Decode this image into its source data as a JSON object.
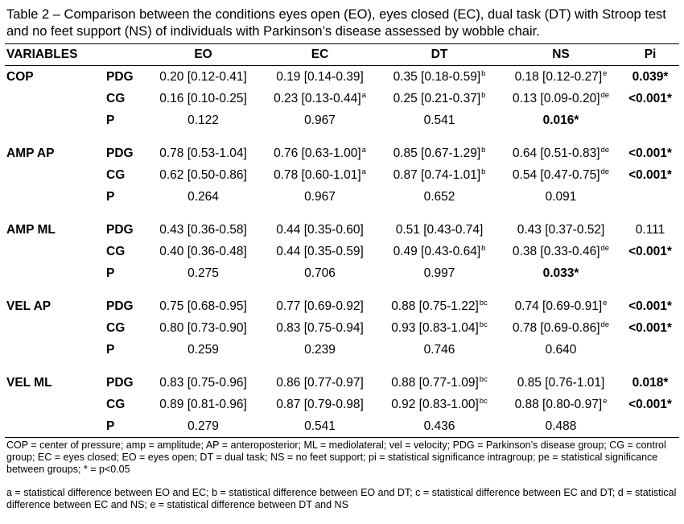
{
  "caption": "Table 2 – Comparison between the conditions eyes open (EO), eyes closed (EC), dual task (DT) with Stroop test and no feet support (NS) of individuals with Parkinson’s disease assessed by wobble chair.",
  "headers": {
    "variables": "VARIABLES",
    "eo": "EO",
    "ec": "EC",
    "dt": "DT",
    "ns": "NS",
    "pi": "Pi"
  },
  "sections": [
    {
      "name": "COP",
      "rows": [
        {
          "group": "PDG",
          "eo": "0.20 [0.12-0.41]",
          "eo_sup": "",
          "ec": "0.19 [0.14-0.39]",
          "ec_sup": "",
          "dt": "0.35 [0.18-0.59]",
          "dt_sup": "b",
          "ns": "0.18 [0.12-0.27]",
          "ns_sup": "e",
          "pi": "0.039*",
          "pi_bold": true,
          "ns_bold": false
        },
        {
          "group": "CG",
          "eo": "0.16 [0.10-0.25]",
          "eo_sup": "",
          "ec": "0.23 [0.13-0.44]",
          "ec_sup": "a",
          "dt": "0.25 [0.21-0.37]",
          "dt_sup": "b",
          "ns": "0.13 [0.09-0.20]",
          "ns_sup": "de",
          "pi": "<0.001*",
          "pi_bold": true,
          "ns_bold": false
        },
        {
          "group": "P",
          "eo": "0.122",
          "eo_sup": "",
          "ec": "0.967",
          "ec_sup": "",
          "dt": "0.541",
          "dt_sup": "",
          "ns": "0.016*",
          "ns_sup": "",
          "pi": "",
          "pi_bold": false,
          "ns_bold": true
        }
      ]
    },
    {
      "name": "AMP AP",
      "rows": [
        {
          "group": "PDG",
          "eo": "0.78 [0.53-1.04]",
          "eo_sup": "",
          "ec": "0.76 [0.63-1.00]",
          "ec_sup": "a",
          "dt": "0.85 [0.67-1.29]",
          "dt_sup": "b",
          "ns": "0.64 [0.51-0.83]",
          "ns_sup": "de",
          "pi": "<0.001*",
          "pi_bold": true,
          "ns_bold": false
        },
        {
          "group": "CG",
          "eo": "0.62 [0.50-0.86]",
          "eo_sup": "",
          "ec": "0.78 [0.60-1.01]",
          "ec_sup": "a",
          "dt": "0.87 [0.74-1.01]",
          "dt_sup": "b",
          "ns": "0.54 [0.47-0.75]",
          "ns_sup": "de",
          "pi": "<0.001*",
          "pi_bold": true,
          "ns_bold": false
        },
        {
          "group": "P",
          "eo": "0.264",
          "eo_sup": "",
          "ec": "0.967",
          "ec_sup": "",
          "dt": "0.652",
          "dt_sup": "",
          "ns": "0.091",
          "ns_sup": "",
          "pi": "",
          "pi_bold": false,
          "ns_bold": false
        }
      ]
    },
    {
      "name": "AMP ML",
      "rows": [
        {
          "group": "PDG",
          "eo": "0.43 [0.36-0.58]",
          "eo_sup": "",
          "ec": "0.44 [0.35-0.60]",
          "ec_sup": "",
          "dt": "0.51 [0.43-0.74]",
          "dt_sup": "",
          "ns": "0.43 [0.37-0.52]",
          "ns_sup": "",
          "pi": "0.111",
          "pi_bold": false,
          "ns_bold": false
        },
        {
          "group": "CG",
          "eo": "0.40 [0.36-0.48]",
          "eo_sup": "",
          "ec": "0.44 [0.35-0.59]",
          "ec_sup": "",
          "dt": "0.49 [0.43-0.64]",
          "dt_sup": "b",
          "ns": "0.38 [0.33-0.46]",
          "ns_sup": "de",
          "pi": "<0.001*",
          "pi_bold": true,
          "ns_bold": false
        },
        {
          "group": "P",
          "eo": "0.275",
          "eo_sup": "",
          "ec": "0.706",
          "ec_sup": "",
          "dt": "0.997",
          "dt_sup": "",
          "ns": "0.033*",
          "ns_sup": "",
          "pi": "",
          "pi_bold": false,
          "ns_bold": true
        }
      ]
    },
    {
      "name": "VEL AP",
      "rows": [
        {
          "group": "PDG",
          "eo": "0.75 [0.68-0.95]",
          "eo_sup": "",
          "ec": "0.77 [0.69-0.92]",
          "ec_sup": "",
          "dt": "0.88 [0.75-1.22]",
          "dt_sup": "bc",
          "ns": "0.74 [0.69-0.91]",
          "ns_sup": "e",
          "pi": "<0.001*",
          "pi_bold": true,
          "ns_bold": false
        },
        {
          "group": "CG",
          "eo": "0.80 [0.73-0.90]",
          "eo_sup": "",
          "ec": "0.83 [0.75-0.94]",
          "ec_sup": "",
          "dt": "0.93 [0.83-1.04]",
          "dt_sup": "bc",
          "ns": "0.78 [0.69-0.86]",
          "ns_sup": "de",
          "pi": "<0.001*",
          "pi_bold": true,
          "ns_bold": false
        },
        {
          "group": "P",
          "eo": "0.259",
          "eo_sup": "",
          "ec": "0.239",
          "ec_sup": "",
          "dt": "0.746",
          "dt_sup": "",
          "ns": "0.640",
          "ns_sup": "",
          "pi": "",
          "pi_bold": false,
          "ns_bold": false
        }
      ]
    },
    {
      "name": "VEL ML",
      "rows": [
        {
          "group": "PDG",
          "eo": "0.83 [0.75-0.96]",
          "eo_sup": "",
          "ec": "0.86 [0.77-0.97]",
          "ec_sup": "",
          "dt": "0.88 [0.77-1.09]",
          "dt_sup": "bc",
          "ns": "0.85 [0.76-1.01]",
          "ns_sup": "",
          "pi": "0.018*",
          "pi_bold": true,
          "ns_bold": false
        },
        {
          "group": "CG",
          "eo": "0.89 [0.81-0.96]",
          "eo_sup": "",
          "ec": "0.87 [0.79-0.98]",
          "ec_sup": "",
          "dt": "0.92 [0.83-1.00]",
          "dt_sup": "bc",
          "ns": "0.88 [0.80-0.97]",
          "ns_sup": "e",
          "pi": "<0.001*",
          "pi_bold": true,
          "ns_bold": false
        },
        {
          "group": "P",
          "eo": "0.279",
          "eo_sup": "",
          "ec": "0.541",
          "ec_sup": "",
          "dt": "0.436",
          "dt_sup": "",
          "ns": "0.488",
          "ns_sup": "",
          "pi": "",
          "pi_bold": false,
          "ns_bold": false
        }
      ]
    }
  ],
  "footnotes": {
    "abbreviations": "COP = center of pressure; amp = amplitude; AP = anteroposterior; ML = mediolateral; vel = velocity; PDG = Parkinson’s disease group; CG = control group; EC = eyes closed; EO = eyes open; DT = dual task; NS = no feet support; pi = statistical significance intragroup; pe = statistical significance between groups; * = p<0.05",
    "legend": "a = statistical difference between EO and EC; b = statistical difference between EO and DT; c = statistical difference between EC and DT; d = statistical difference between EC and NS; e = statistical difference between DT and NS"
  }
}
